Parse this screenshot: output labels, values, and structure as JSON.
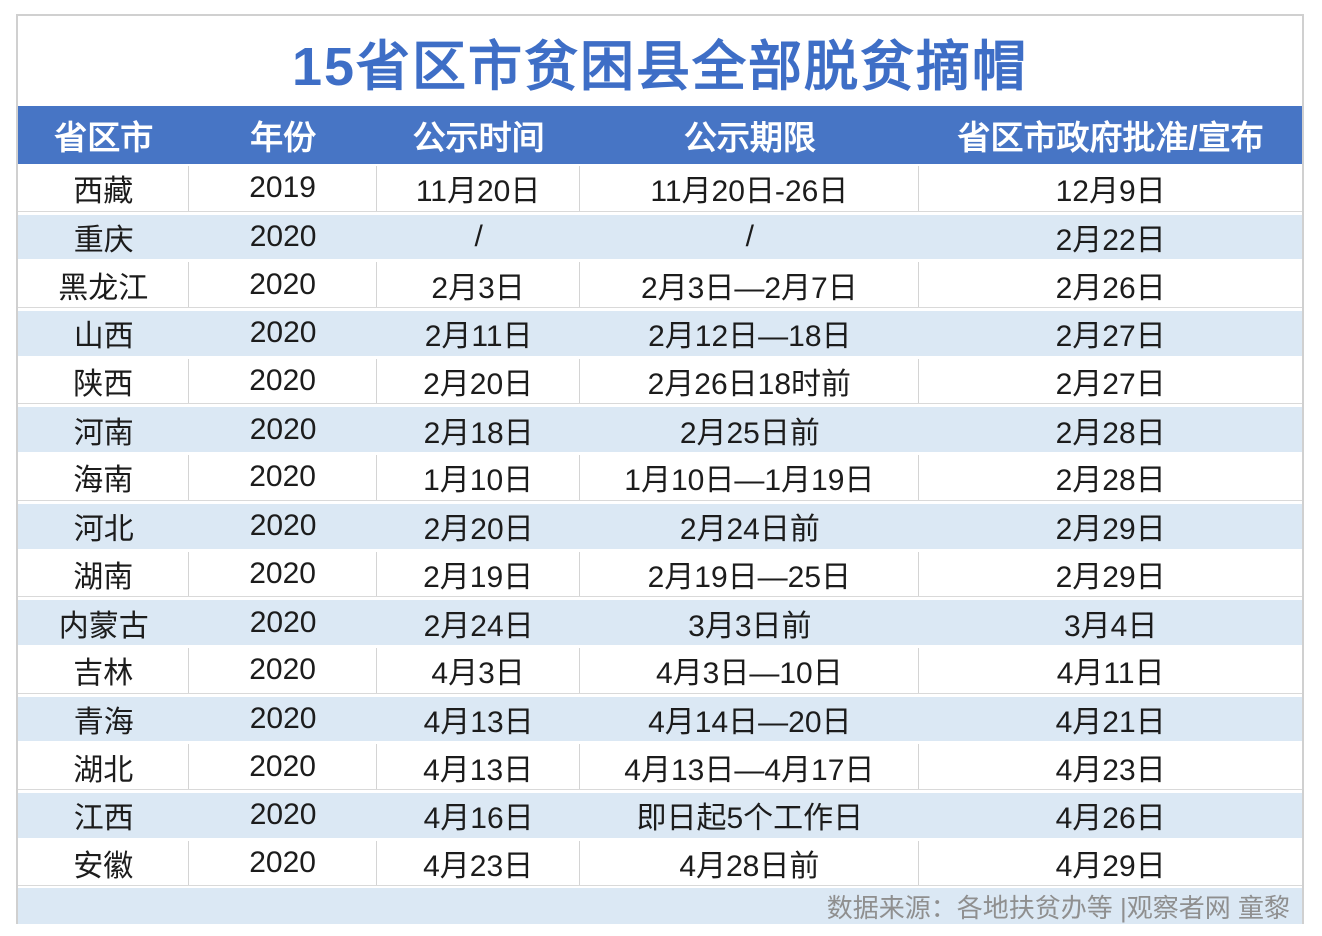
{
  "title": "15省区市贫困县全部脱贫摘帽",
  "chart_data": {
    "type": "table",
    "title": "15省区市贫困县全部脱贫摘帽",
    "columns": [
      "省区市",
      "年份",
      "公示时间",
      "公示期限",
      "省区市政府批准/宣布"
    ],
    "rows": [
      [
        "西藏",
        "2019",
        "11月20日",
        "11月20日-26日",
        "12月9日"
      ],
      [
        "重庆",
        "2020",
        "/",
        "/",
        "2月22日"
      ],
      [
        "黑龙江",
        "2020",
        "2月3日",
        "2月3日—2月7日",
        "2月26日"
      ],
      [
        "山西",
        "2020",
        "2月11日",
        "2月12日—18日",
        "2月27日"
      ],
      [
        "陕西",
        "2020",
        "2月20日",
        "2月26日18时前",
        "2月27日"
      ],
      [
        "河南",
        "2020",
        "2月18日",
        "2月25日前",
        "2月28日"
      ],
      [
        "海南",
        "2020",
        "1月10日",
        "1月10日—1月19日",
        "2月28日"
      ],
      [
        "河北",
        "2020",
        "2月20日",
        "2月24日前",
        "2月29日"
      ],
      [
        "湖南",
        "2020",
        "2月19日",
        "2月19日—25日",
        "2月29日"
      ],
      [
        "内蒙古",
        "2020",
        "2月24日",
        "3月3日前",
        "3月4日"
      ],
      [
        "吉林",
        "2020",
        "4月3日",
        "4月3日—10日",
        "4月11日"
      ],
      [
        "青海",
        "2020",
        "4月13日",
        "4月14日—20日",
        "4月21日"
      ],
      [
        "湖北",
        "2020",
        "4月13日",
        "4月13日—4月17日",
        "4月23日"
      ],
      [
        "江西",
        "2020",
        "4月16日",
        "即日起5个工作日",
        "4月26日"
      ],
      [
        "安徽",
        "2020",
        "4月23日",
        "4月28日前",
        "4月29日"
      ]
    ],
    "row_striping": [
      "white",
      "alt"
    ],
    "legend_position": "none",
    "grid": "partial"
  },
  "footer": {
    "source": "数据来源：各地扶贫办等 |观察者网 童黎"
  },
  "colors": {
    "header_bg": "#4775c5",
    "header_text": "#ffffff",
    "title_text": "#3e6ec6",
    "row_alt_bg": "#dbe8f4",
    "row_text": "#1c1c1c",
    "divider": "#d4d4d4",
    "outer_border": "#d0d0d0",
    "footer_text": "#8f8f8f"
  }
}
